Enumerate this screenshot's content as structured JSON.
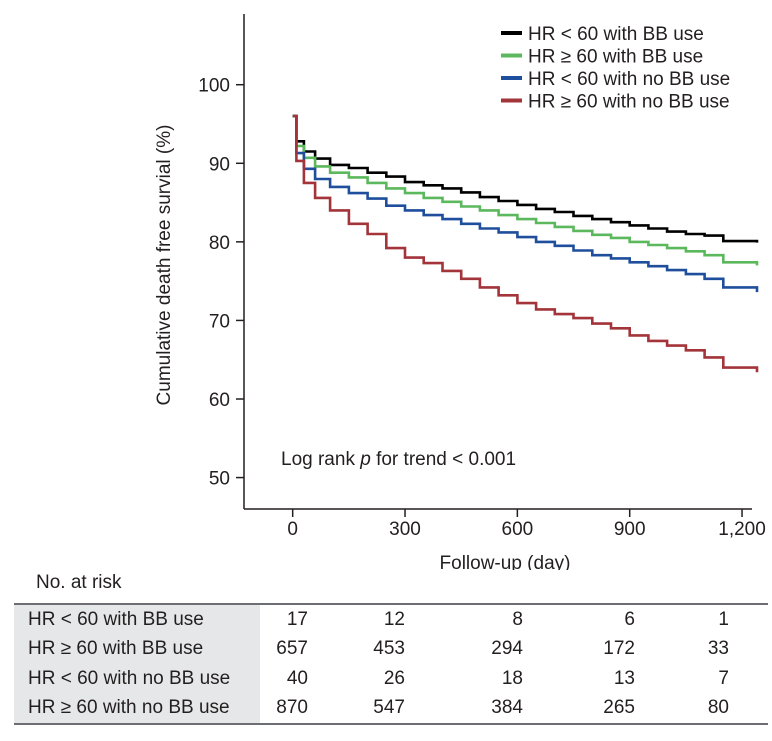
{
  "chart_data": {
    "type": "line",
    "subtype": "kaplan-meier step curves",
    "xlabel": "Follow-up (day)",
    "ylabel": "Cumulative death free survial (%)",
    "xlim": [
      -130,
      1280
    ],
    "ylim": [
      46,
      109
    ],
    "x_ticks": [
      0,
      300,
      600,
      900,
      1200
    ],
    "x_tick_labels": [
      "0",
      "300",
      "600",
      "900",
      "1,200"
    ],
    "y_ticks": [
      50,
      60,
      70,
      80,
      90,
      100
    ],
    "y_tick_labels": [
      "50",
      "60",
      "70",
      "80",
      "90",
      "100"
    ],
    "legend_position": "top-right",
    "annotation": {
      "prefix": "Log rank ",
      "italic": "p",
      "suffix": " for trend < 0.001"
    },
    "series": [
      {
        "name": "HR < 60 with BB use",
        "color": "#000000",
        "points": [
          [
            0,
            96
          ],
          [
            10,
            92.8
          ],
          [
            30,
            91.5
          ],
          [
            60,
            90.6
          ],
          [
            100,
            89.8
          ],
          [
            150,
            89.4
          ],
          [
            200,
            88.8
          ],
          [
            250,
            88.3
          ],
          [
            300,
            87.6
          ],
          [
            350,
            87.2
          ],
          [
            400,
            86.8
          ],
          [
            450,
            86.3
          ],
          [
            500,
            85.7
          ],
          [
            550,
            85.2
          ],
          [
            600,
            84.7
          ],
          [
            650,
            84.2
          ],
          [
            700,
            83.8
          ],
          [
            750,
            83.3
          ],
          [
            800,
            82.9
          ],
          [
            850,
            82.5
          ],
          [
            900,
            82.1
          ],
          [
            950,
            81.7
          ],
          [
            1000,
            81.3
          ],
          [
            1050,
            81.0
          ],
          [
            1100,
            80.8
          ],
          [
            1150,
            80.1
          ],
          [
            1240,
            79.9
          ]
        ]
      },
      {
        "name": "HR ≥ 60 with BB use",
        "color": "#5cb85c",
        "points": [
          [
            0,
            96
          ],
          [
            10,
            92.2
          ],
          [
            30,
            90.7
          ],
          [
            60,
            89.6
          ],
          [
            100,
            88.8
          ],
          [
            150,
            88.2
          ],
          [
            200,
            87.5
          ],
          [
            250,
            86.8
          ],
          [
            300,
            86.2
          ],
          [
            350,
            85.6
          ],
          [
            400,
            85.1
          ],
          [
            450,
            84.5
          ],
          [
            500,
            84.0
          ],
          [
            550,
            83.4
          ],
          [
            600,
            82.9
          ],
          [
            650,
            82.4
          ],
          [
            700,
            81.9
          ],
          [
            750,
            81.4
          ],
          [
            800,
            80.9
          ],
          [
            850,
            80.5
          ],
          [
            900,
            80.0
          ],
          [
            950,
            79.6
          ],
          [
            1000,
            79.2
          ],
          [
            1050,
            78.8
          ],
          [
            1100,
            78.3
          ],
          [
            1150,
            77.4
          ],
          [
            1240,
            77.0
          ]
        ]
      },
      {
        "name": "HR < 60 with no BB use",
        "color": "#1f4e9c",
        "points": [
          [
            0,
            96
          ],
          [
            10,
            91.3
          ],
          [
            30,
            89.3
          ],
          [
            60,
            88.0
          ],
          [
            100,
            87.0
          ],
          [
            150,
            86.2
          ],
          [
            200,
            85.5
          ],
          [
            250,
            84.6
          ],
          [
            300,
            84.0
          ],
          [
            350,
            83.4
          ],
          [
            400,
            82.9
          ],
          [
            450,
            82.3
          ],
          [
            500,
            81.7
          ],
          [
            550,
            81.2
          ],
          [
            600,
            80.6
          ],
          [
            650,
            80.0
          ],
          [
            700,
            79.5
          ],
          [
            750,
            78.9
          ],
          [
            800,
            78.3
          ],
          [
            850,
            77.9
          ],
          [
            900,
            77.4
          ],
          [
            950,
            76.9
          ],
          [
            1000,
            76.4
          ],
          [
            1050,
            75.9
          ],
          [
            1100,
            75.3
          ],
          [
            1150,
            74.2
          ],
          [
            1240,
            73.6
          ]
        ]
      },
      {
        "name": "HR ≥ 60 with no BB use",
        "color": "#a2343a",
        "points": [
          [
            0,
            96
          ],
          [
            10,
            90.3
          ],
          [
            30,
            87.5
          ],
          [
            60,
            85.6
          ],
          [
            100,
            84.0
          ],
          [
            150,
            82.3
          ],
          [
            200,
            81.0
          ],
          [
            250,
            79.2
          ],
          [
            300,
            78.0
          ],
          [
            350,
            77.3
          ],
          [
            400,
            76.3
          ],
          [
            450,
            75.3
          ],
          [
            500,
            74.2
          ],
          [
            550,
            73.2
          ],
          [
            600,
            72.2
          ],
          [
            650,
            71.4
          ],
          [
            700,
            70.8
          ],
          [
            750,
            70.3
          ],
          [
            800,
            69.6
          ],
          [
            850,
            69.0
          ],
          [
            900,
            68.1
          ],
          [
            950,
            67.4
          ],
          [
            1000,
            66.8
          ],
          [
            1050,
            66.2
          ],
          [
            1100,
            65.3
          ],
          [
            1150,
            64.0
          ],
          [
            1240,
            63.4
          ]
        ]
      }
    ]
  },
  "risk_table": {
    "heading": "No. at risk",
    "rows": [
      {
        "label": "HR < 60 with BB use",
        "counts": [
          "17",
          "12",
          "8",
          "6",
          "1"
        ]
      },
      {
        "label": "HR ≥ 60 with BB use",
        "counts": [
          "657",
          "453",
          "294",
          "172",
          "33"
        ]
      },
      {
        "label": "HR < 60 with no BB use",
        "counts": [
          "40",
          "26",
          "18",
          "13",
          "7"
        ]
      },
      {
        "label": "HR ≥ 60 with no BB use",
        "counts": [
          "870",
          "547",
          "384",
          "265",
          "80"
        ]
      }
    ]
  }
}
